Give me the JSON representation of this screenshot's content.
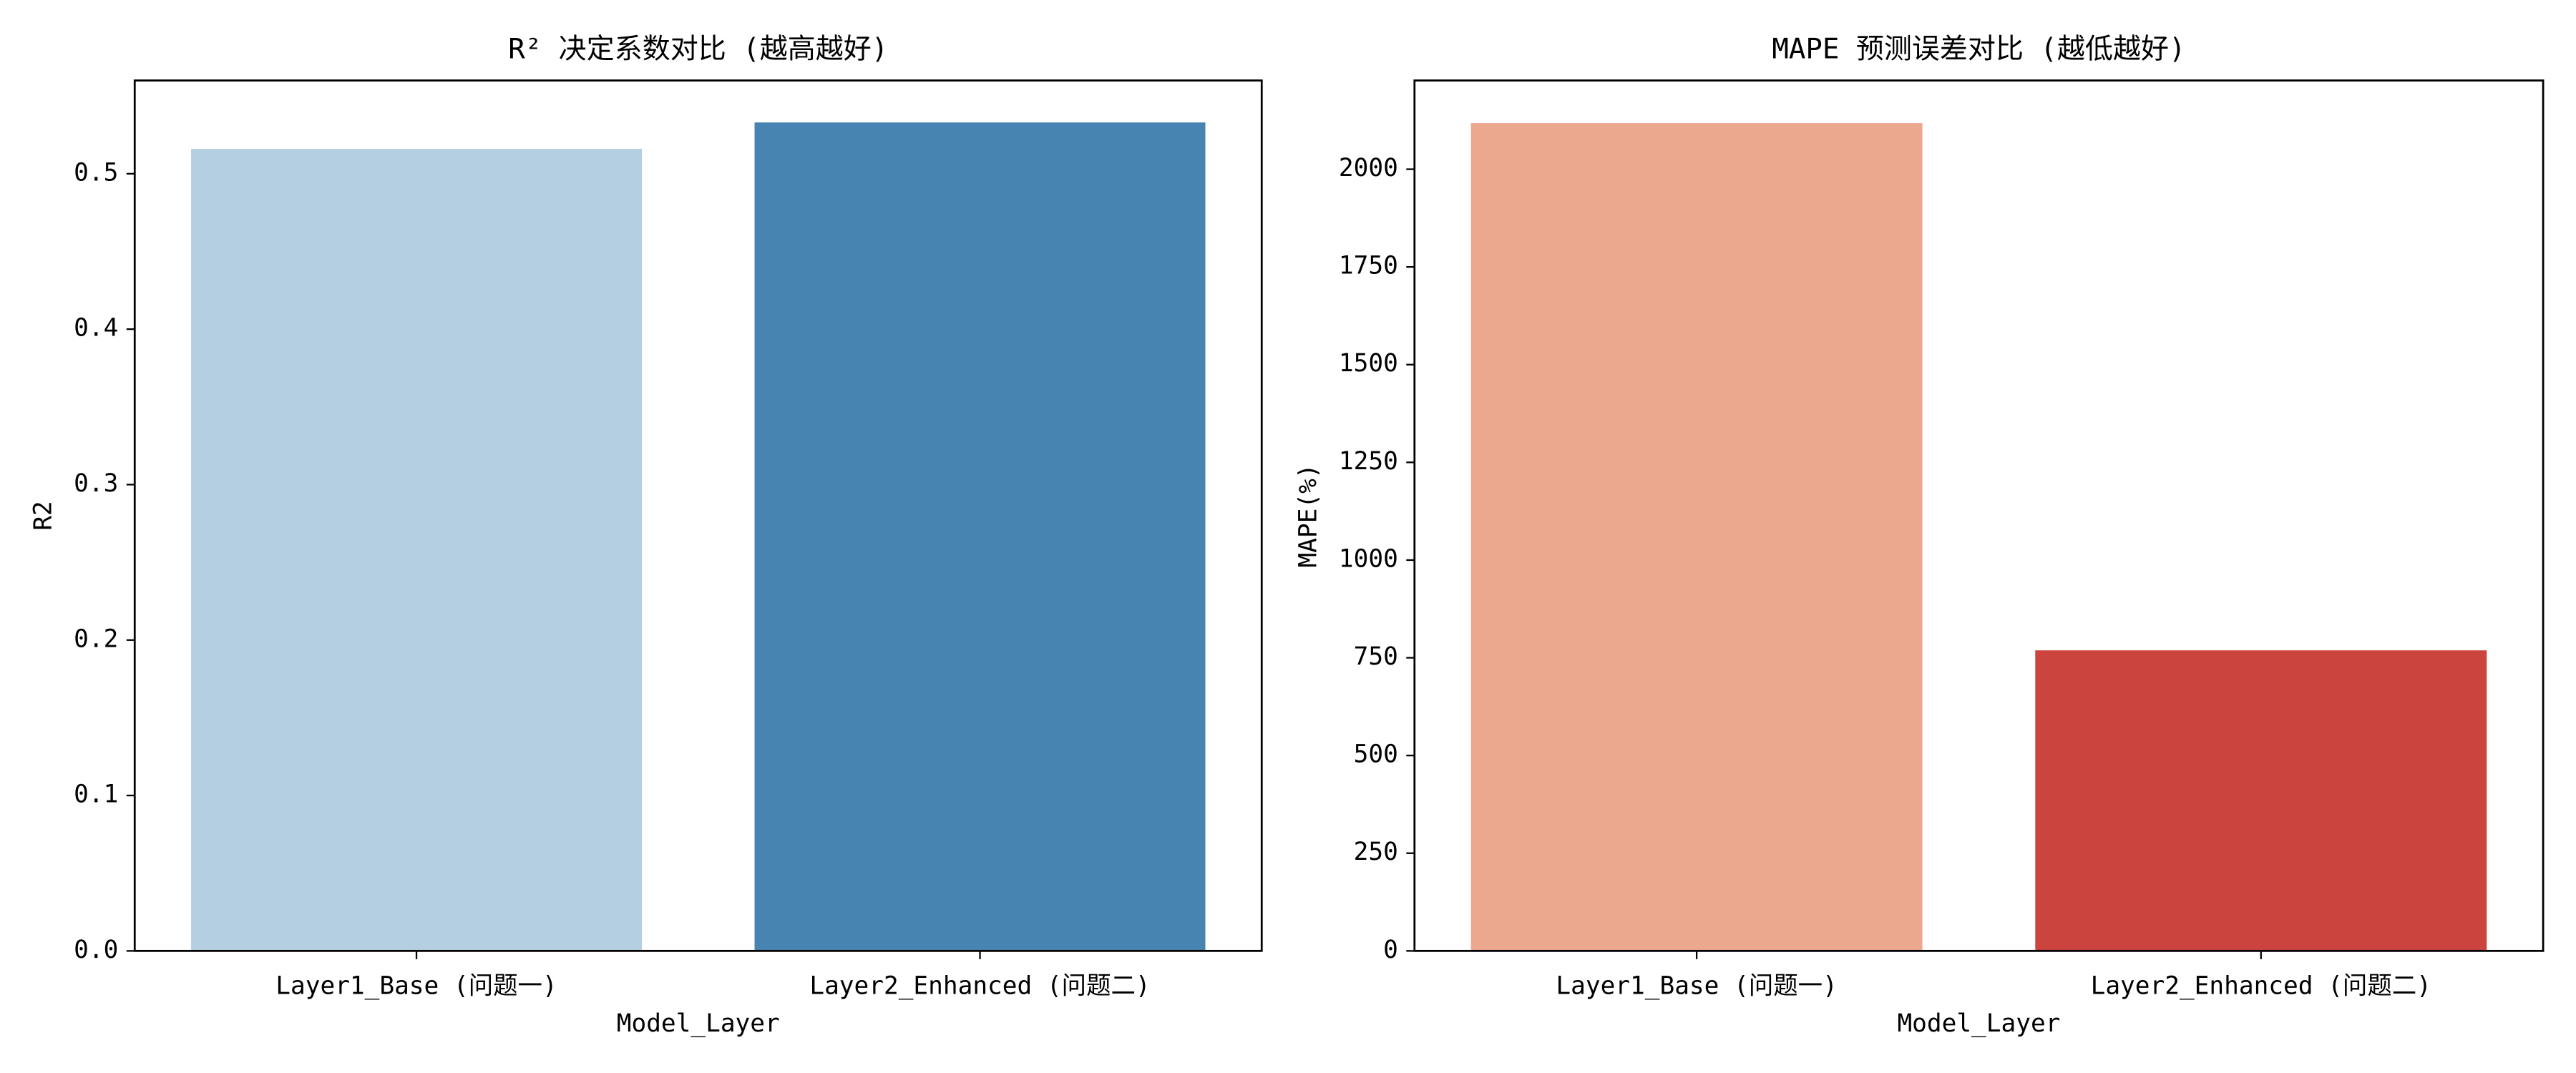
{
  "chart_data": [
    {
      "type": "bar",
      "title": "R² 决定系数对比 (越高越好)",
      "x_label": "Model_Layer",
      "y_label": "R2",
      "categories": [
        "Layer1_Base (问题一)",
        "Layer2_Enhanced (问题二)"
      ],
      "values": [
        0.516,
        0.533
      ],
      "colors": [
        "#b4cfe1",
        "#4884b1"
      ],
      "ylim": [
        0,
        0.56
      ],
      "yticks": [
        {
          "value": 0,
          "label": "0.0"
        },
        0.1,
        0.2,
        0.3,
        0.4,
        0.5
      ],
      "grid": false
    },
    {
      "type": "bar",
      "title": "MAPE 预测误差对比 (越低越好)",
      "x_label": "Model_Layer",
      "y_label": "MAPE(%)",
      "categories": [
        "Layer1_Base (问题一)",
        "Layer2_Enhanced (问题二)"
      ],
      "values": [
        2118,
        769
      ],
      "colors": [
        "#eca78f",
        "#cb443d"
      ],
      "ylim": [
        0,
        2227
      ],
      "yticks": [
        0,
        250,
        500,
        750,
        1000,
        1250,
        1500,
        1750,
        2000
      ],
      "grid": false
    }
  ]
}
